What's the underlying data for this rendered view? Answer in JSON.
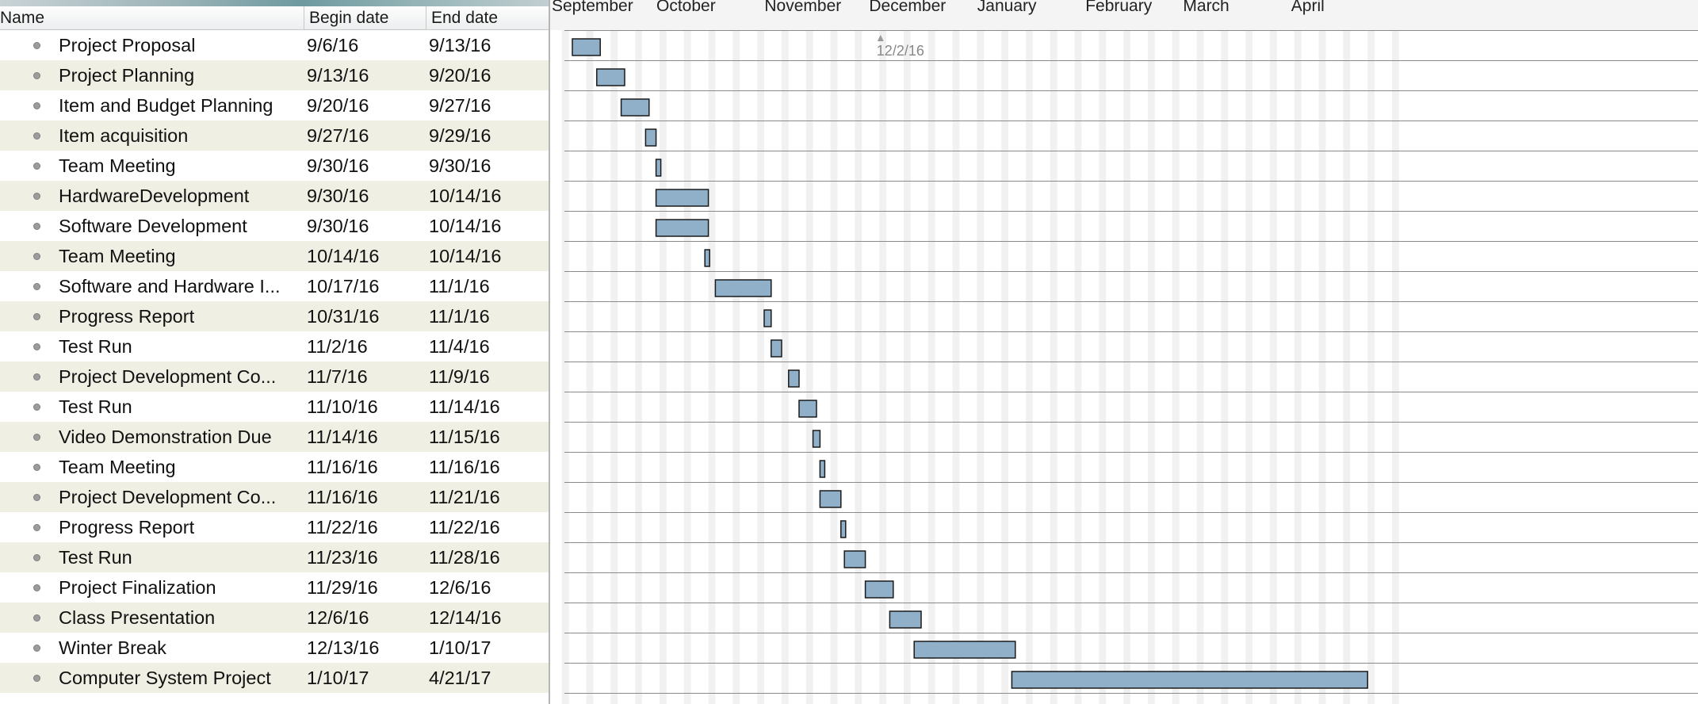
{
  "table": {
    "headers": {
      "name": "Name",
      "begin": "Begin date",
      "end": "End date"
    },
    "rows": [
      {
        "name": "Project Proposal",
        "begin": "9/6/16",
        "end": "9/13/16"
      },
      {
        "name": "Project Planning",
        "begin": "9/13/16",
        "end": "9/20/16"
      },
      {
        "name": "Item and Budget Planning",
        "begin": "9/20/16",
        "end": "9/27/16"
      },
      {
        "name": "Item acquisition",
        "begin": "9/27/16",
        "end": "9/29/16"
      },
      {
        "name": "Team Meeting",
        "begin": "9/30/16",
        "end": "9/30/16"
      },
      {
        "name": "HardwareDevelopment",
        "begin": "9/30/16",
        "end": "10/14/16"
      },
      {
        "name": "Software Development",
        "begin": "9/30/16",
        "end": "10/14/16"
      },
      {
        "name": "Team Meeting",
        "begin": "10/14/16",
        "end": "10/14/16"
      },
      {
        "name": "Software and Hardware I...",
        "begin": "10/17/16",
        "end": "11/1/16"
      },
      {
        "name": "Progress Report",
        "begin": "10/31/16",
        "end": "11/1/16"
      },
      {
        "name": "Test Run",
        "begin": "11/2/16",
        "end": "11/4/16"
      },
      {
        "name": "Project Development Co...",
        "begin": "11/7/16",
        "end": "11/9/16"
      },
      {
        "name": "Test Run",
        "begin": "11/10/16",
        "end": "11/14/16"
      },
      {
        "name": "Video Demonstration Due",
        "begin": "11/14/16",
        "end": "11/15/16"
      },
      {
        "name": "Team Meeting",
        "begin": "11/16/16",
        "end": "11/16/16"
      },
      {
        "name": "Project Development Co...",
        "begin": "11/16/16",
        "end": "11/21/16"
      },
      {
        "name": "Progress Report",
        "begin": "11/22/16",
        "end": "11/22/16"
      },
      {
        "name": "Test Run",
        "begin": "11/23/16",
        "end": "11/28/16"
      },
      {
        "name": "Project Finalization",
        "begin": "11/29/16",
        "end": "12/6/16"
      },
      {
        "name": "Class Presentation",
        "begin": "12/6/16",
        "end": "12/14/16"
      },
      {
        "name": "Winter Break",
        "begin": "12/13/16",
        "end": "1/10/17"
      },
      {
        "name": "Computer System Project",
        "begin": "1/10/17",
        "end": "4/21/17"
      }
    ]
  },
  "timeline": {
    "months": [
      "September",
      "October",
      "November",
      "December",
      "January",
      "February",
      "March",
      "April"
    ],
    "today_label": "12/2/16",
    "colors": {
      "bar_fill": "#8fb0c8",
      "bar_stroke": "#1a1a1a",
      "row_line": "#8a8a8a",
      "weekend_band": "#f1f1f1",
      "header_bg": "#f4f4f4",
      "table_alt_row": "#efefe3"
    }
  }
}
